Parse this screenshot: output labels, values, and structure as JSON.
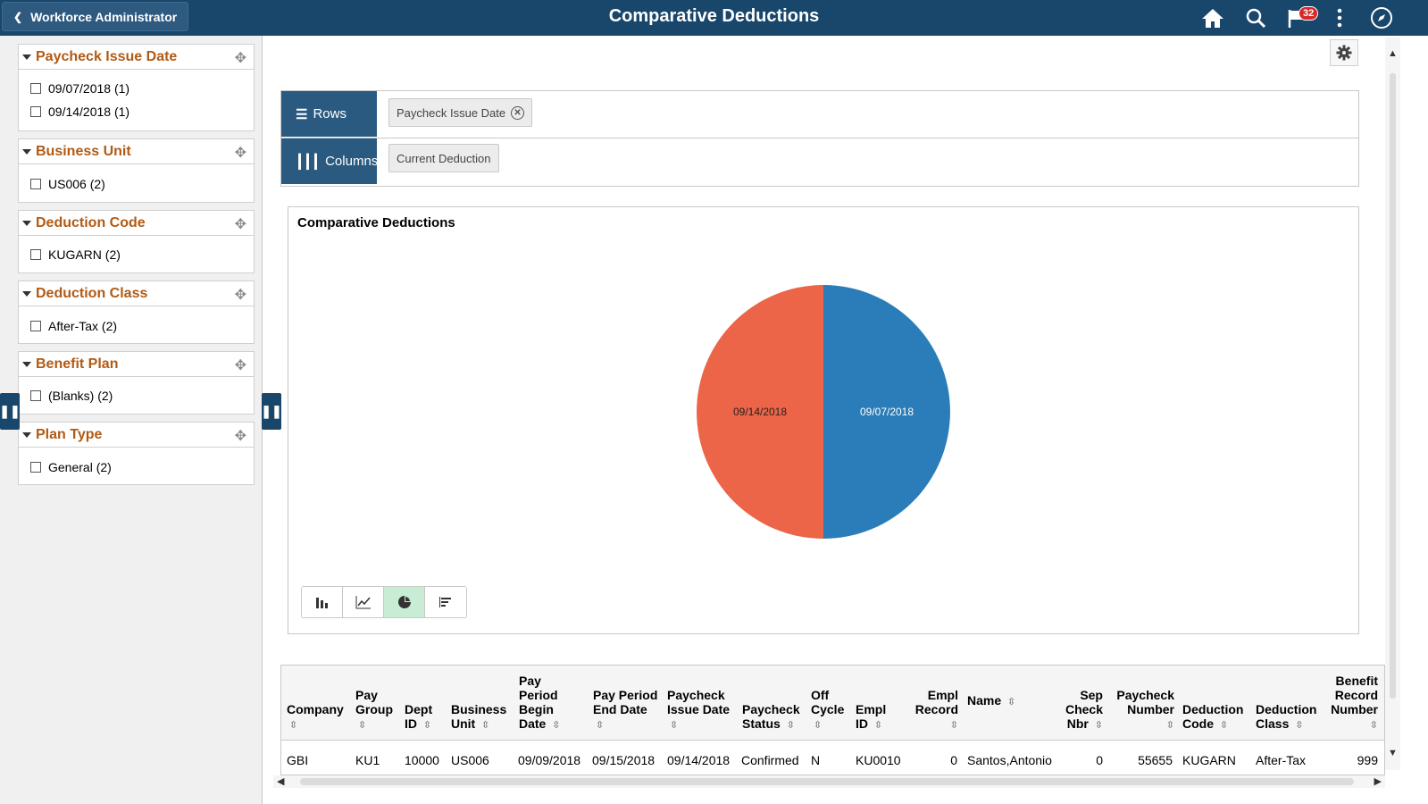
{
  "header": {
    "back_label": "Workforce Administrator",
    "title": "Comparative Deductions",
    "notification_count": "32",
    "icons": [
      "home-icon",
      "search-icon",
      "flag-icon",
      "kebab-icon",
      "compass-icon"
    ]
  },
  "facets": [
    {
      "title": "Paycheck Issue Date",
      "items": [
        "09/07/2018 (1)",
        "09/14/2018 (1)"
      ]
    },
    {
      "title": "Business Unit",
      "items": [
        "US006 (2)"
      ]
    },
    {
      "title": "Deduction Code",
      "items": [
        "KUGARN (2)"
      ]
    },
    {
      "title": "Deduction Class",
      "items": [
        "After-Tax (2)"
      ]
    },
    {
      "title": "Benefit Plan",
      "items": [
        "(Blanks) (2)"
      ]
    },
    {
      "title": "Plan Type",
      "items": [
        "General (2)"
      ]
    }
  ],
  "pivot": {
    "rows_label": "Rows",
    "rows_chip": "Paycheck Issue Date",
    "columns_label": "Columns",
    "columns_chip": "Current Deduction"
  },
  "chart_data": {
    "type": "pie",
    "title": "Comparative Deductions",
    "categories": [
      "09/07/2018",
      "09/14/2018"
    ],
    "values": [
      50,
      50
    ],
    "colors": [
      "#2a7db8",
      "#ec6548"
    ]
  },
  "grid": {
    "columns": [
      "Company",
      "Pay Group",
      "Dept ID",
      "Business Unit",
      "Pay Period Begin Date",
      "Pay Period End Date",
      "Paycheck Issue Date",
      "Paycheck Status",
      "Off Cycle",
      "Empl ID",
      "Empl Record",
      "Name",
      "Sep Check Nbr",
      "Paycheck Number",
      "Deduction Code",
      "Deduction Class",
      "Benefit Record Number"
    ],
    "row": [
      "GBI",
      "KU1",
      "10000",
      "US006",
      "09/09/2018",
      "09/15/2018",
      "09/14/2018",
      "Confirmed",
      "N",
      "KU0010",
      "0",
      "Santos,Antonio",
      "0",
      "55655",
      "KUGARN",
      "After-Tax",
      "999"
    ]
  }
}
